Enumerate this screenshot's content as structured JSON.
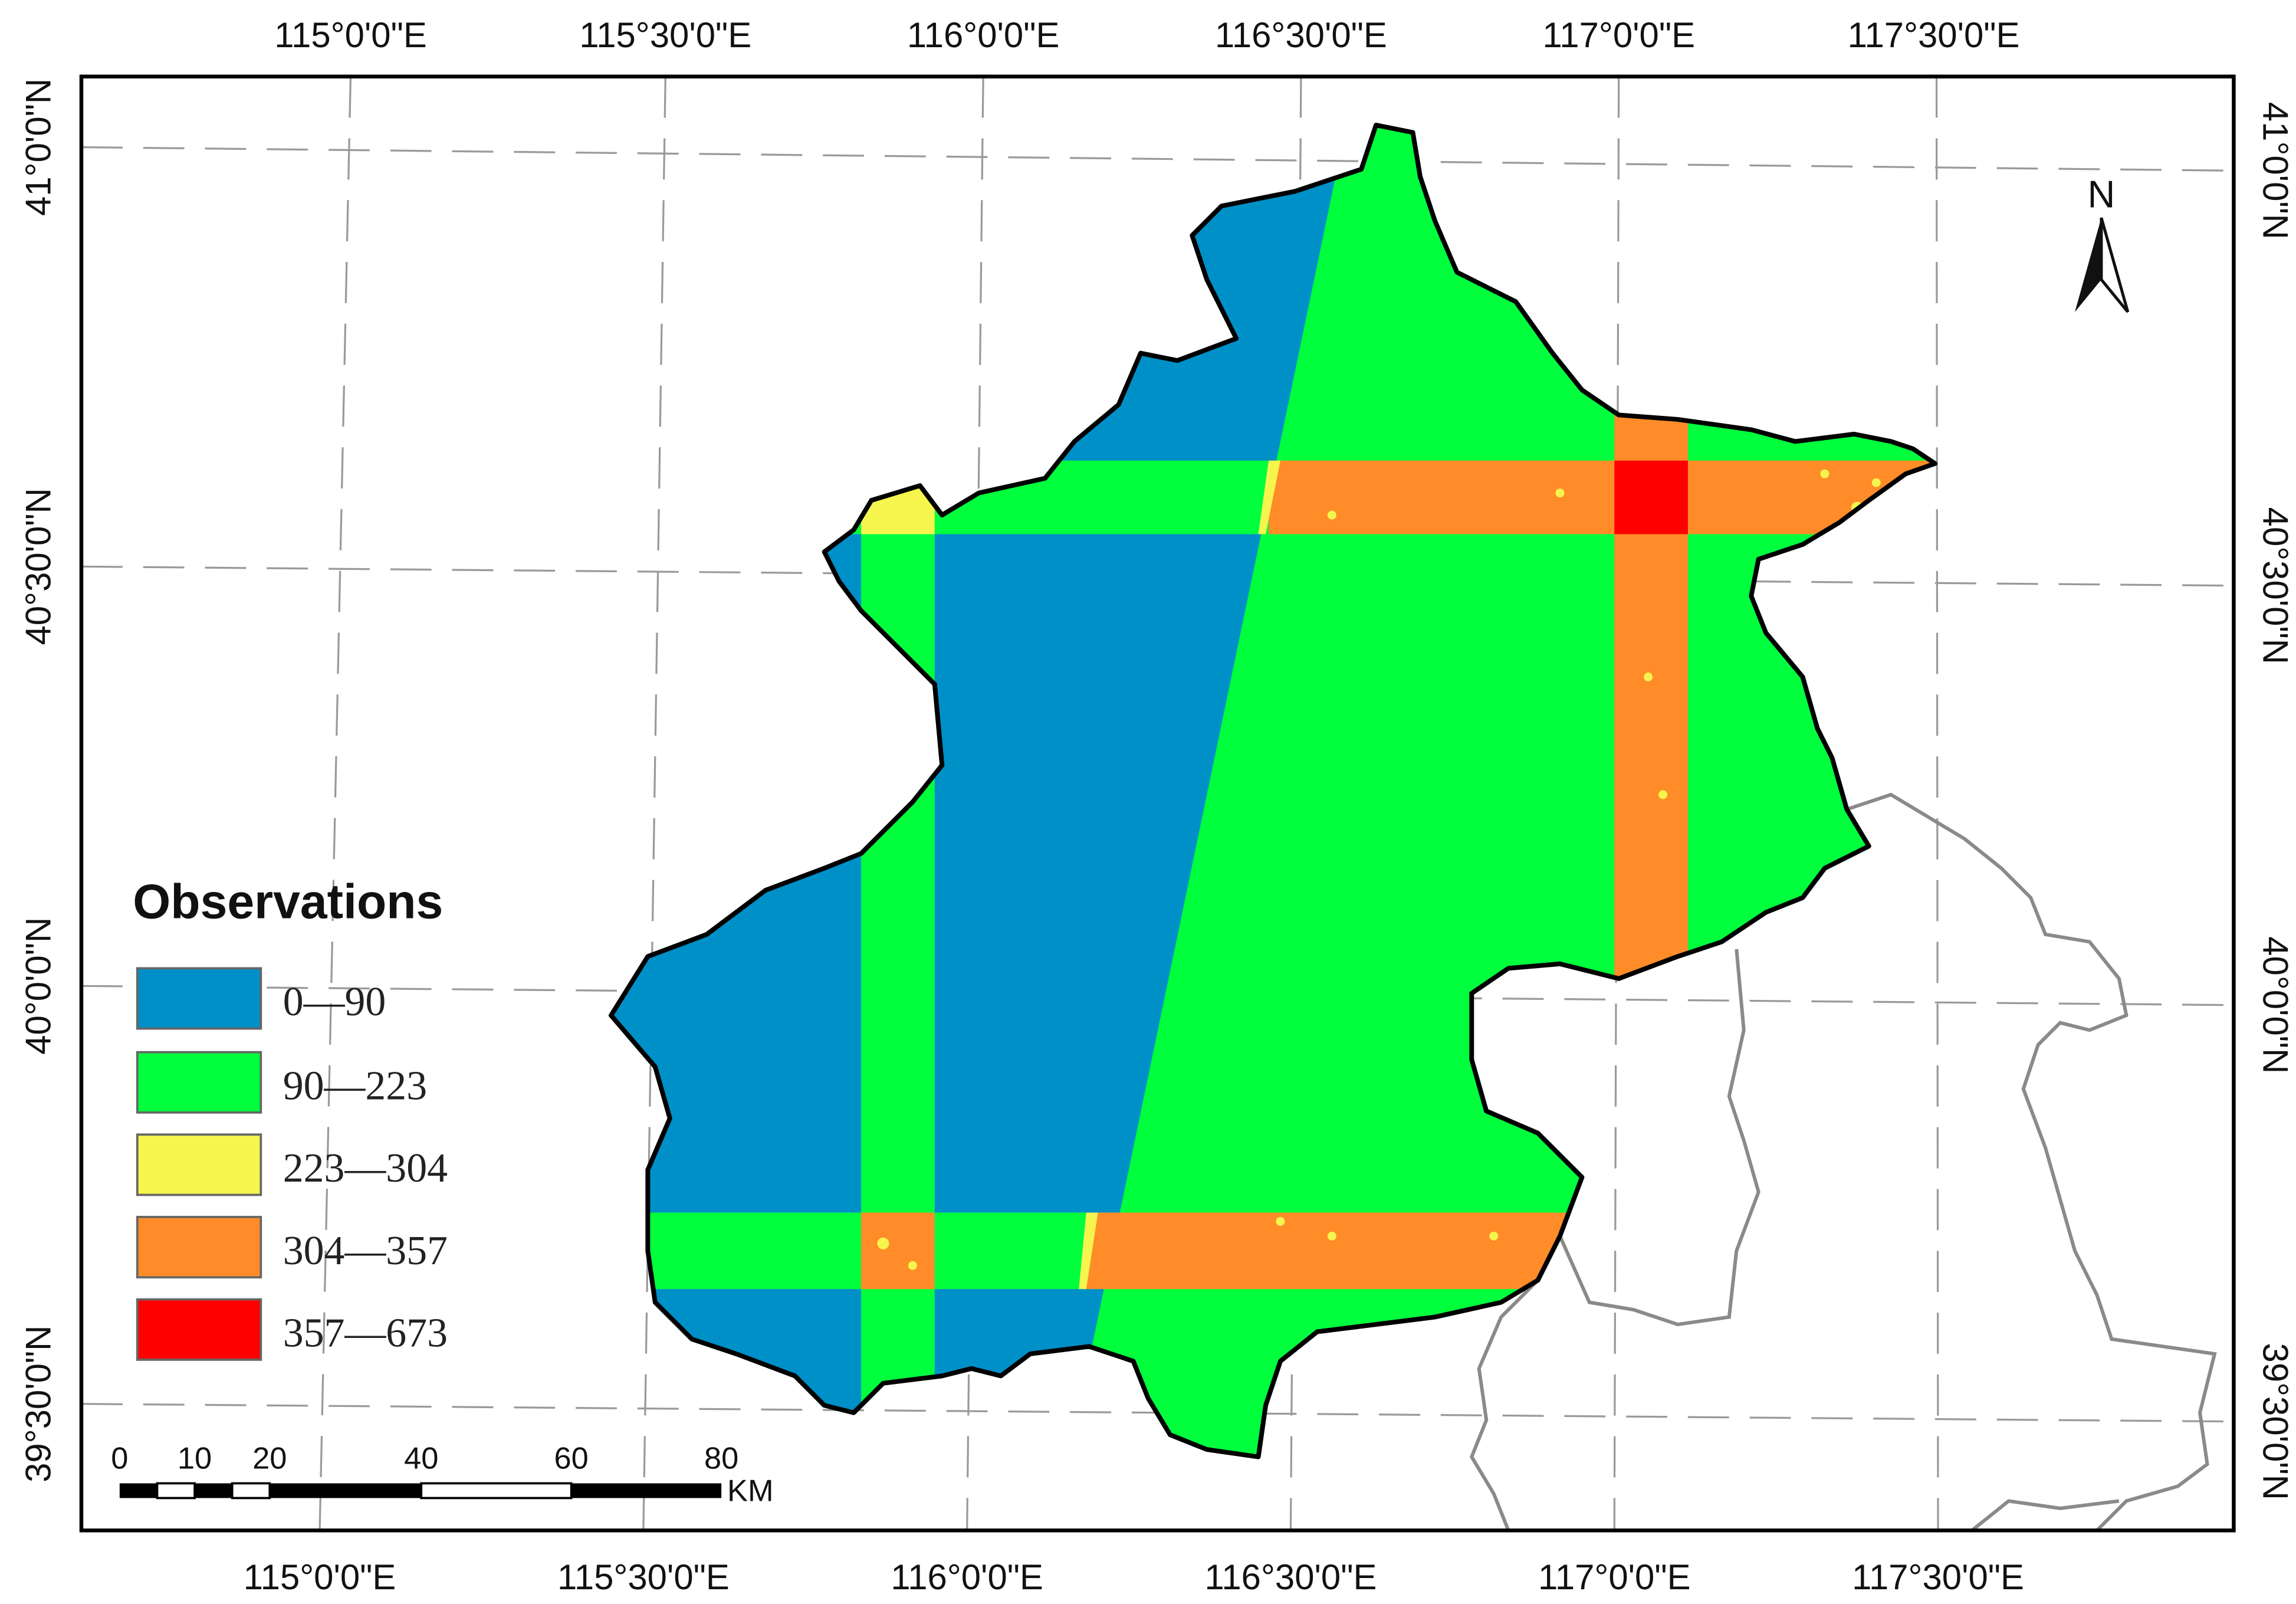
{
  "map": {
    "longitude_labels": [
      "115°0'0\"E",
      "115°30'0\"E",
      "116°0'0\"E",
      "116°30'0\"E",
      "117°0'0\"E",
      "117°30'0\"E"
    ],
    "latitude_labels": [
      "41°0'0\"N",
      "40°30'0\"N",
      "40°0'0\"N",
      "39°30'0\"N"
    ],
    "north_arrow": {
      "label": "N",
      "icon": "north-arrow-icon"
    }
  },
  "legend": {
    "title": "Observations",
    "items": [
      {
        "label": "0—90",
        "color": "#0090c8"
      },
      {
        "label": "90—223",
        "color": "#00ff3c"
      },
      {
        "label": "223—304",
        "color": "#f5f54e"
      },
      {
        "label": "304—357",
        "color": "#ff8c28"
      },
      {
        "label": "357—673",
        "color": "#ff0000"
      }
    ]
  },
  "scale_bar": {
    "ticks": [
      "0",
      "10",
      "20",
      "40",
      "60",
      "80"
    ],
    "unit": "KM"
  },
  "colors": {
    "neighbor_boundary": "#8a8a8a",
    "region_outline": "#000000",
    "graticule": "#9a9a9a"
  }
}
